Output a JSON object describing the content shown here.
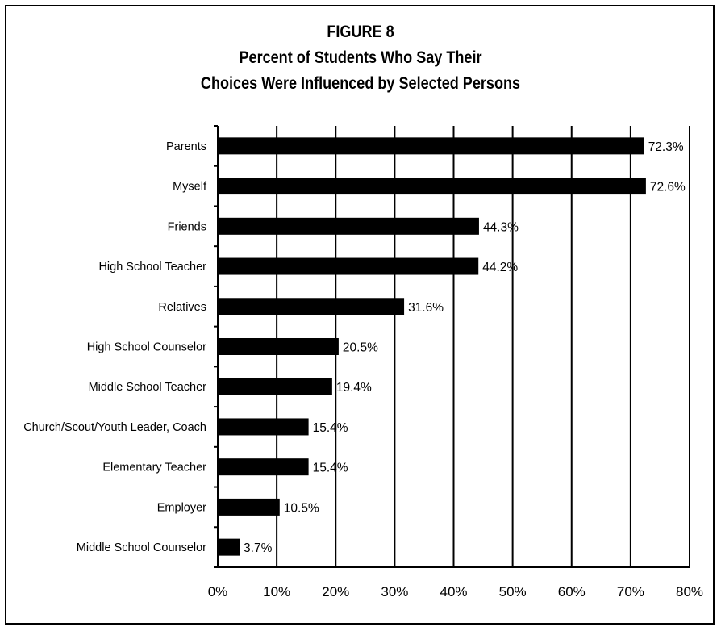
{
  "chart_data": {
    "type": "bar",
    "orientation": "horizontal",
    "title": [
      "FIGURE 8",
      "Percent of Students Who Say Their",
      "Choices Were Influenced by Selected Persons"
    ],
    "categories": [
      "Parents",
      "Myself",
      "Friends",
      "High School Teacher",
      "Relatives",
      "High School Counselor",
      "Middle School Teacher",
      "Church/Scout/Youth Leader, Coach",
      "Elementary Teacher",
      "Employer",
      "Middle School Counselor"
    ],
    "values": [
      72.3,
      72.6,
      44.3,
      44.2,
      31.6,
      20.5,
      19.4,
      15.4,
      15.4,
      10.5,
      3.7
    ],
    "value_labels": [
      "72.3%",
      "72.6%",
      "44.3%",
      "44.2%",
      "31.6%",
      "20.5%",
      "19.4%",
      "15.4%",
      "15.4%",
      "10.5%",
      "3.7%"
    ],
    "xlim": [
      0,
      80
    ],
    "xticks": [
      0,
      10,
      20,
      30,
      40,
      50,
      60,
      70,
      80
    ],
    "xtick_labels": [
      "0%",
      "10%",
      "20%",
      "30%",
      "40%",
      "50%",
      "60%",
      "70%",
      "80%"
    ],
    "xlabel": "",
    "ylabel": "",
    "grid": true,
    "legend": "none",
    "bar_color": "#000000"
  }
}
